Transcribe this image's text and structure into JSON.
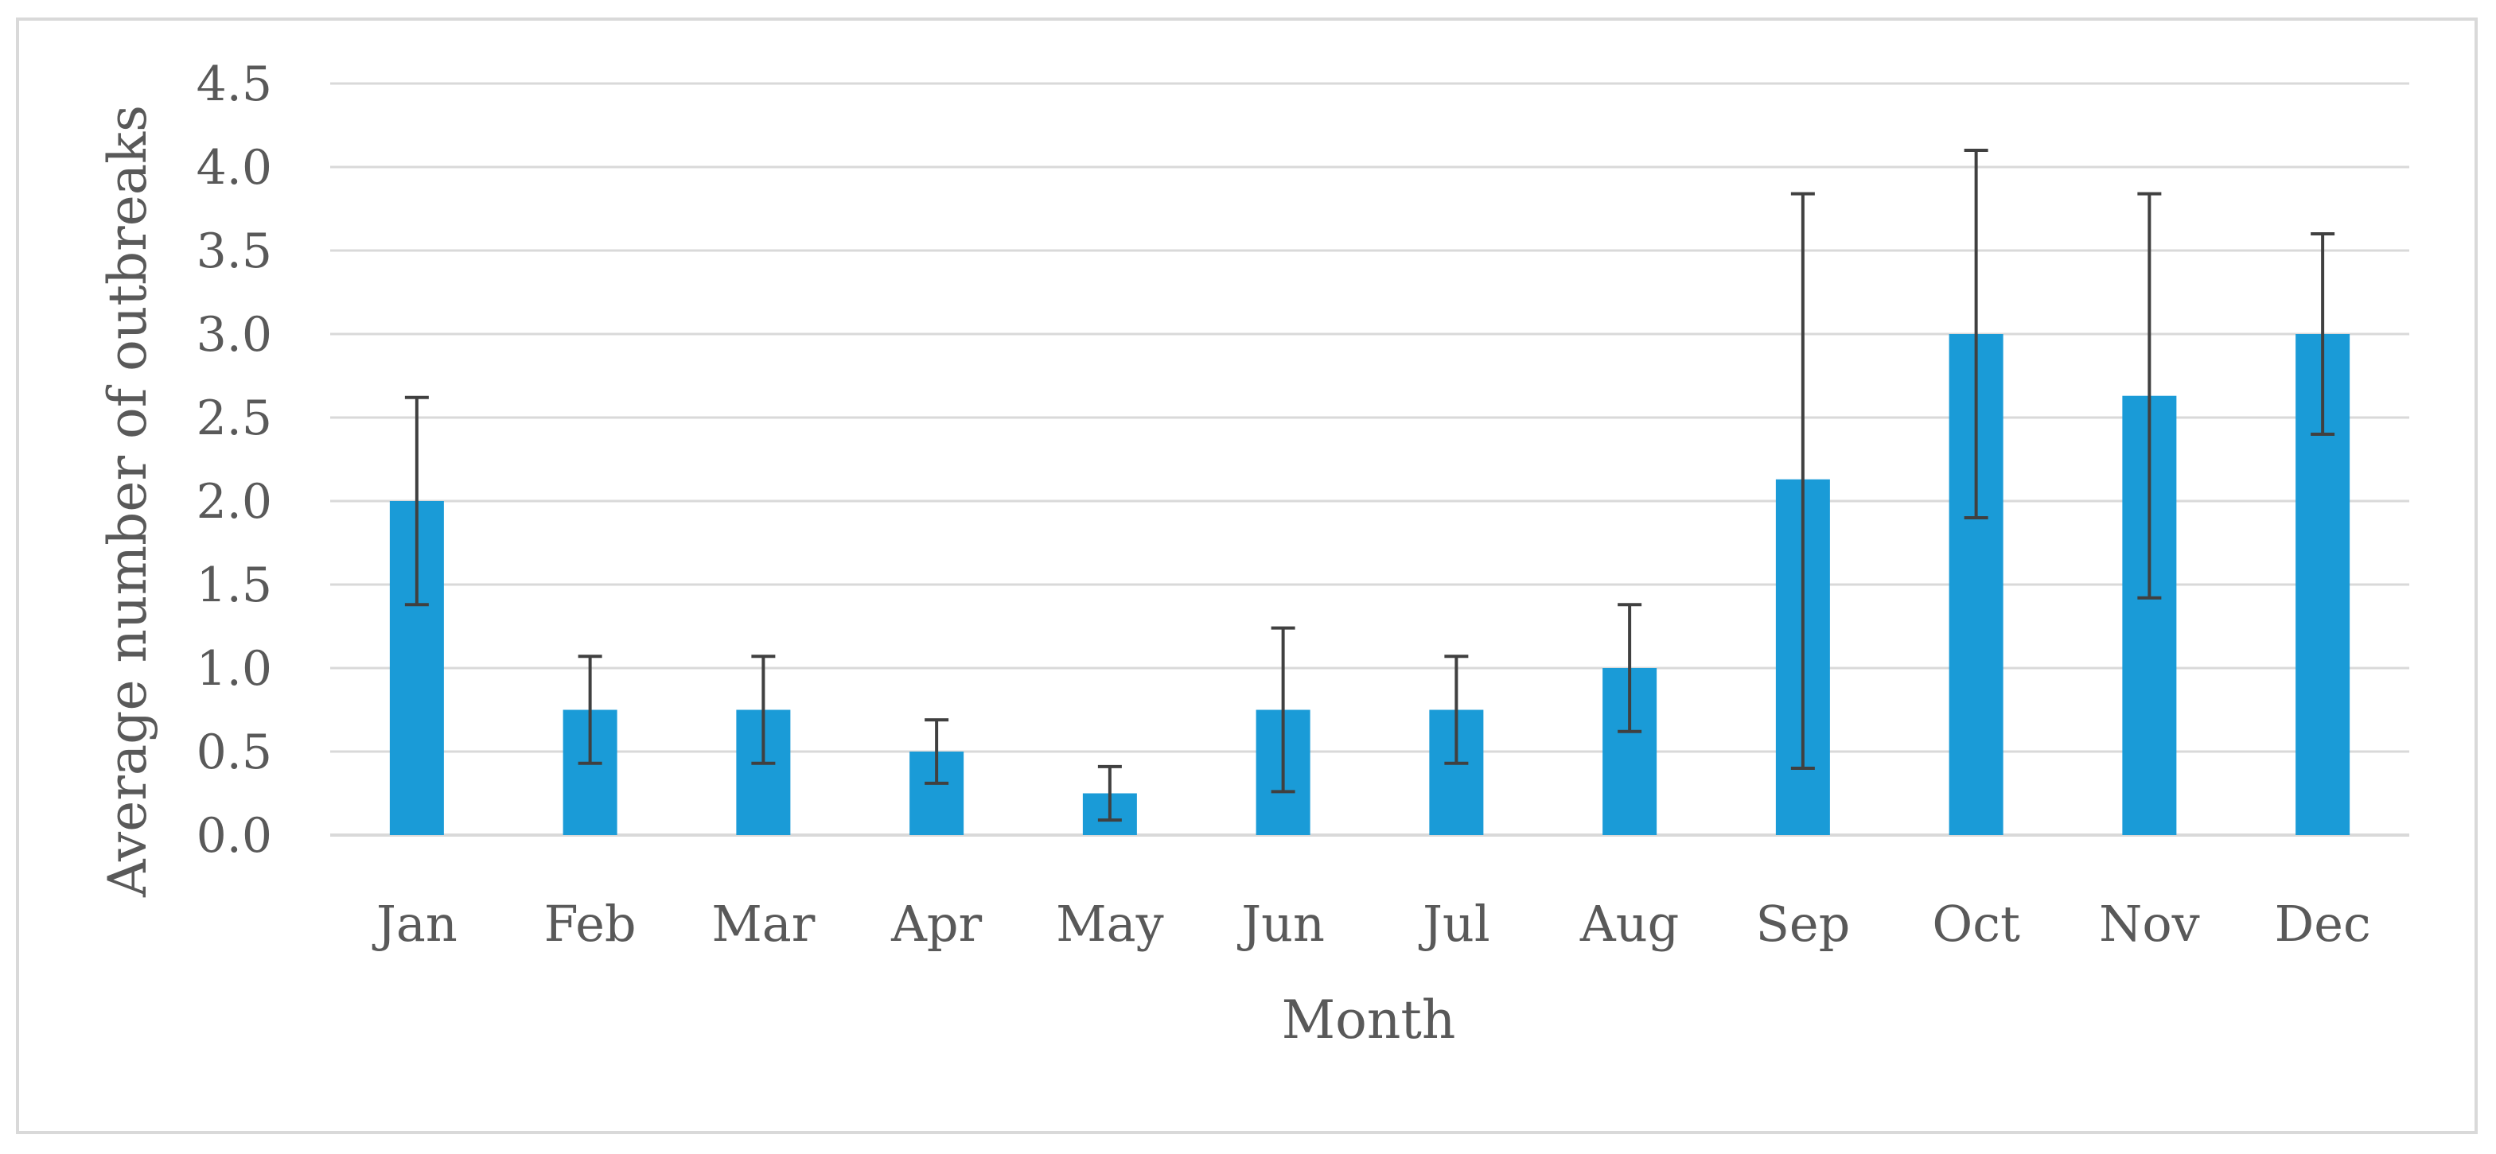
{
  "colors": {
    "bar": "#1a9bd7",
    "error_bar": "#404040",
    "grid": "#d9d9d9",
    "text": "#595959",
    "frame": "#d9d9d9"
  },
  "chart_data": {
    "type": "bar",
    "title": "",
    "xlabel": "Month",
    "ylabel": "Average number of outbreaks",
    "ylim": [
      0,
      4.5
    ],
    "yticks": [
      "0.0",
      "0.5",
      "1.0",
      "1.5",
      "2.0",
      "2.5",
      "3.0",
      "3.5",
      "4.0",
      "4.5"
    ],
    "grid": true,
    "legend": "none",
    "categories": [
      "Jan",
      "Feb",
      "Mar",
      "Apr",
      "May",
      "Jun",
      "Jul",
      "Aug",
      "Sep",
      "Oct",
      "Nov",
      "Dec"
    ],
    "series": [
      {
        "values": [
          2.0,
          0.75,
          0.75,
          0.5,
          0.25,
          0.75,
          0.75,
          1.0,
          2.13,
          3.0,
          2.63,
          3.0
        ],
        "error_low": [
          1.38,
          0.43,
          0.43,
          0.31,
          0.09,
          0.26,
          0.43,
          0.62,
          0.4,
          1.9,
          1.42,
          2.4
        ],
        "error_high": [
          2.62,
          1.07,
          1.07,
          0.69,
          0.41,
          1.24,
          1.07,
          1.38,
          3.84,
          4.1,
          3.84,
          3.6
        ]
      }
    ]
  }
}
